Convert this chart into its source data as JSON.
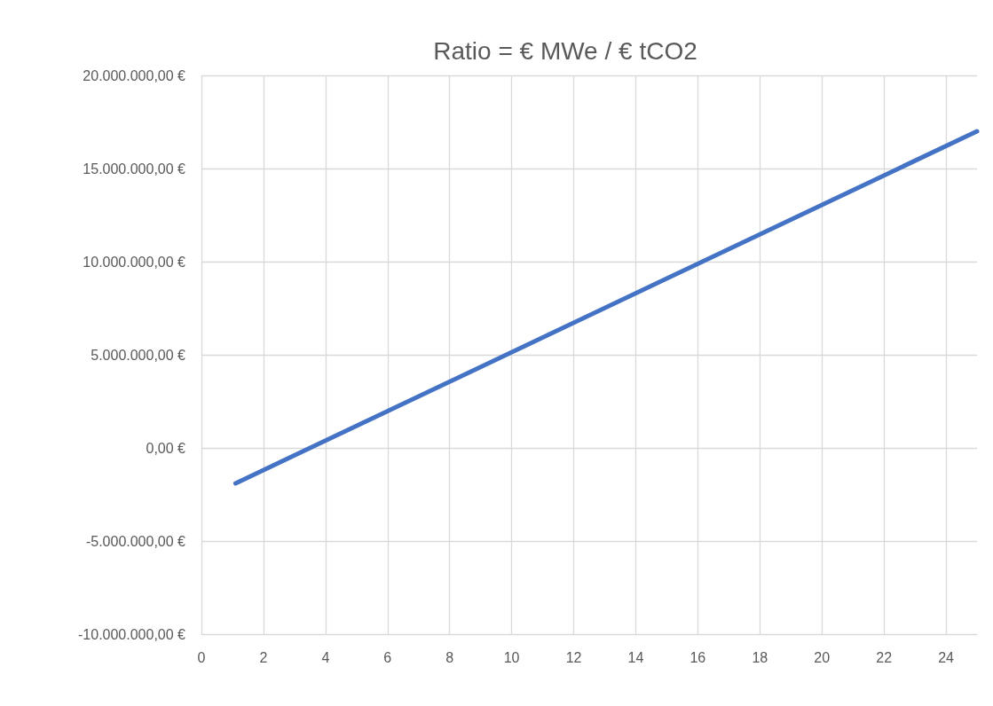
{
  "chart_data": {
    "type": "line",
    "title": "Ratio = € MWe / € tCO2",
    "x": [
      1.1,
      25
    ],
    "values": [
      -1900000,
      17000000
    ],
    "color": "#4472c4",
    "marker": "none",
    "xlim": [
      0,
      25
    ],
    "xticks": [
      0,
      2,
      4,
      6,
      8,
      10,
      12,
      14,
      16,
      18,
      20,
      22,
      24
    ],
    "ylim": [
      -10000000,
      20000000
    ],
    "yticks": [
      {
        "value": -10000000,
        "label": "-10.000.000,00 €"
      },
      {
        "value": -5000000,
        "label": "-5.000.000,00 €"
      },
      {
        "value": 0,
        "label": "0,00 €"
      },
      {
        "value": 5000000,
        "label": "5.000.000,00 €"
      },
      {
        "value": 10000000,
        "label": "10.000.000,00 €"
      },
      {
        "value": 15000000,
        "label": "15.000.000,00 €"
      },
      {
        "value": 20000000,
        "label": "20.000.000,00 €"
      }
    ],
    "grid": true
  }
}
